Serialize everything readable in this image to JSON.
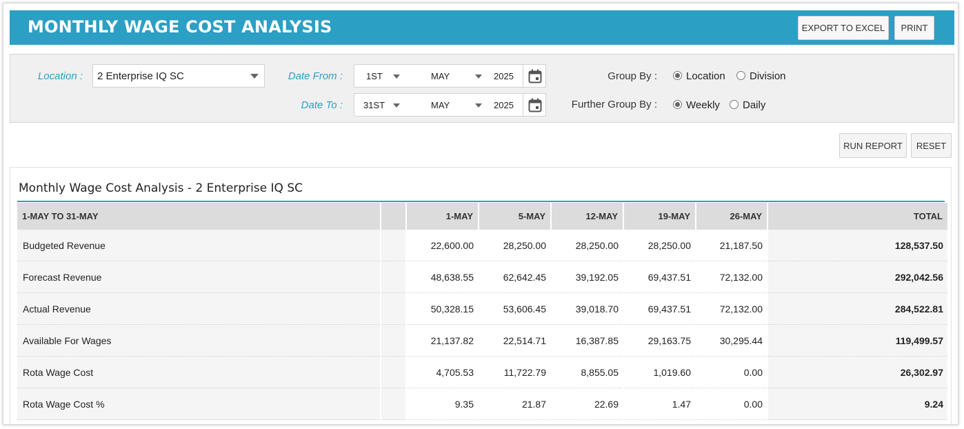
{
  "header": {
    "title": "MONTHLY WAGE COST ANALYSIS",
    "export_label": "EXPORT TO EXCEL",
    "print_label": "PRINT"
  },
  "filters": {
    "location_label": "Location :",
    "location_value": "2 Enterprise IQ SC",
    "date_from_label": "Date From :",
    "date_from": {
      "day": "1ST",
      "month": "MAY",
      "year": "2025"
    },
    "date_to_label": "Date To :",
    "date_to": {
      "day": "31ST",
      "month": "MAY",
      "year": "2025"
    },
    "group_by_label": "Group By :",
    "group_by_options": [
      "Location",
      "Division"
    ],
    "group_by_selected": "Location",
    "further_group_by_label": "Further Group By :",
    "further_group_by_options": [
      "Weekly",
      "Daily"
    ],
    "further_group_by_selected": "Weekly"
  },
  "actions": {
    "run_label": "RUN REPORT",
    "reset_label": "RESET"
  },
  "report": {
    "title": "Monthly Wage Cost Analysis - 2 Enterprise IQ SC",
    "columns": [
      "1-MAY TO 31-MAY",
      "",
      "1-MAY",
      "5-MAY",
      "12-MAY",
      "19-MAY",
      "26-MAY",
      "TOTAL"
    ],
    "rows": [
      {
        "label": "Budgeted Revenue",
        "values": [
          "22,600.00",
          "28,250.00",
          "28,250.00",
          "28,250.00",
          "21,187.50"
        ],
        "total": "128,537.50"
      },
      {
        "label": "Forecast Revenue",
        "values": [
          "48,638.55",
          "62,642.45",
          "39,192.05",
          "69,437.51",
          "72,132.00"
        ],
        "total": "292,042.56"
      },
      {
        "label": "Actual Revenue",
        "values": [
          "50,328.15",
          "53,606.45",
          "39,018.70",
          "69,437.51",
          "72,132.00"
        ],
        "total": "284,522.81"
      },
      {
        "label": "Available For Wages",
        "values": [
          "21,137.82",
          "22,514.71",
          "16,387.85",
          "29,163.75",
          "30,295.44"
        ],
        "total": "119,499.57"
      },
      {
        "label": "Rota Wage Cost",
        "values": [
          "4,705.53",
          "11,722.79",
          "8,855.05",
          "1,019.60",
          "0.00"
        ],
        "total": "26,302.97"
      },
      {
        "label": "Rota Wage Cost %",
        "values": [
          "9.35",
          "21.87",
          "22.69",
          "1.47",
          "0.00"
        ],
        "total": "9.24"
      }
    ]
  },
  "colors": {
    "accent": "#2b9fc4"
  }
}
